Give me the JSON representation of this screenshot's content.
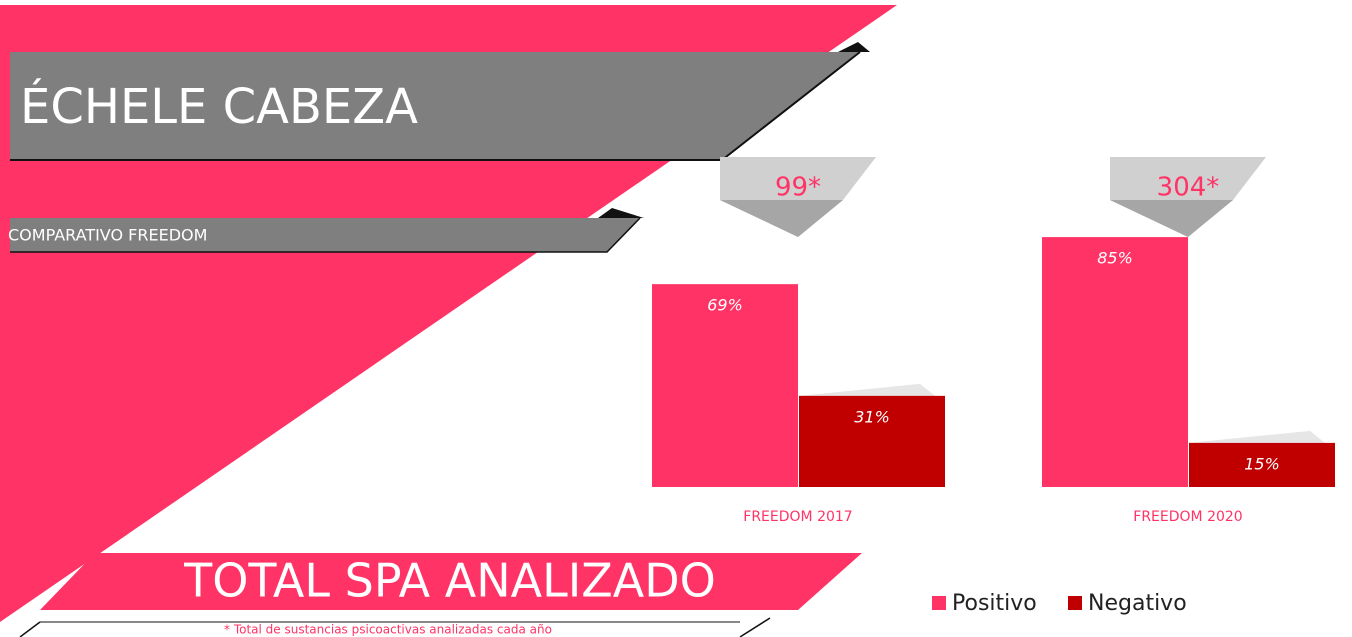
{
  "chart_data": {
    "type": "bar",
    "title": "ÉCHELE CABEZA",
    "subtitle": "COMPARATIVO FREEDOM",
    "footer_title": "TOTAL SPA ANALIZADO",
    "note": "* Total de sustancias psicoactivas analizadas cada año",
    "categories": [
      "FREEDOM 2017",
      "FREEDOM 2020"
    ],
    "annotations": [
      "99*",
      "304*"
    ],
    "series": [
      {
        "name": "Positivo",
        "color": "#ff3366",
        "values": [
          69,
          85
        ],
        "value_labels": [
          "69%",
          "85%"
        ]
      },
      {
        "name": "Negativo",
        "color": "#c00000",
        "values": [
          31,
          15
        ],
        "value_labels": [
          "31%",
          "15%"
        ]
      }
    ],
    "legend": "bottom-right"
  }
}
